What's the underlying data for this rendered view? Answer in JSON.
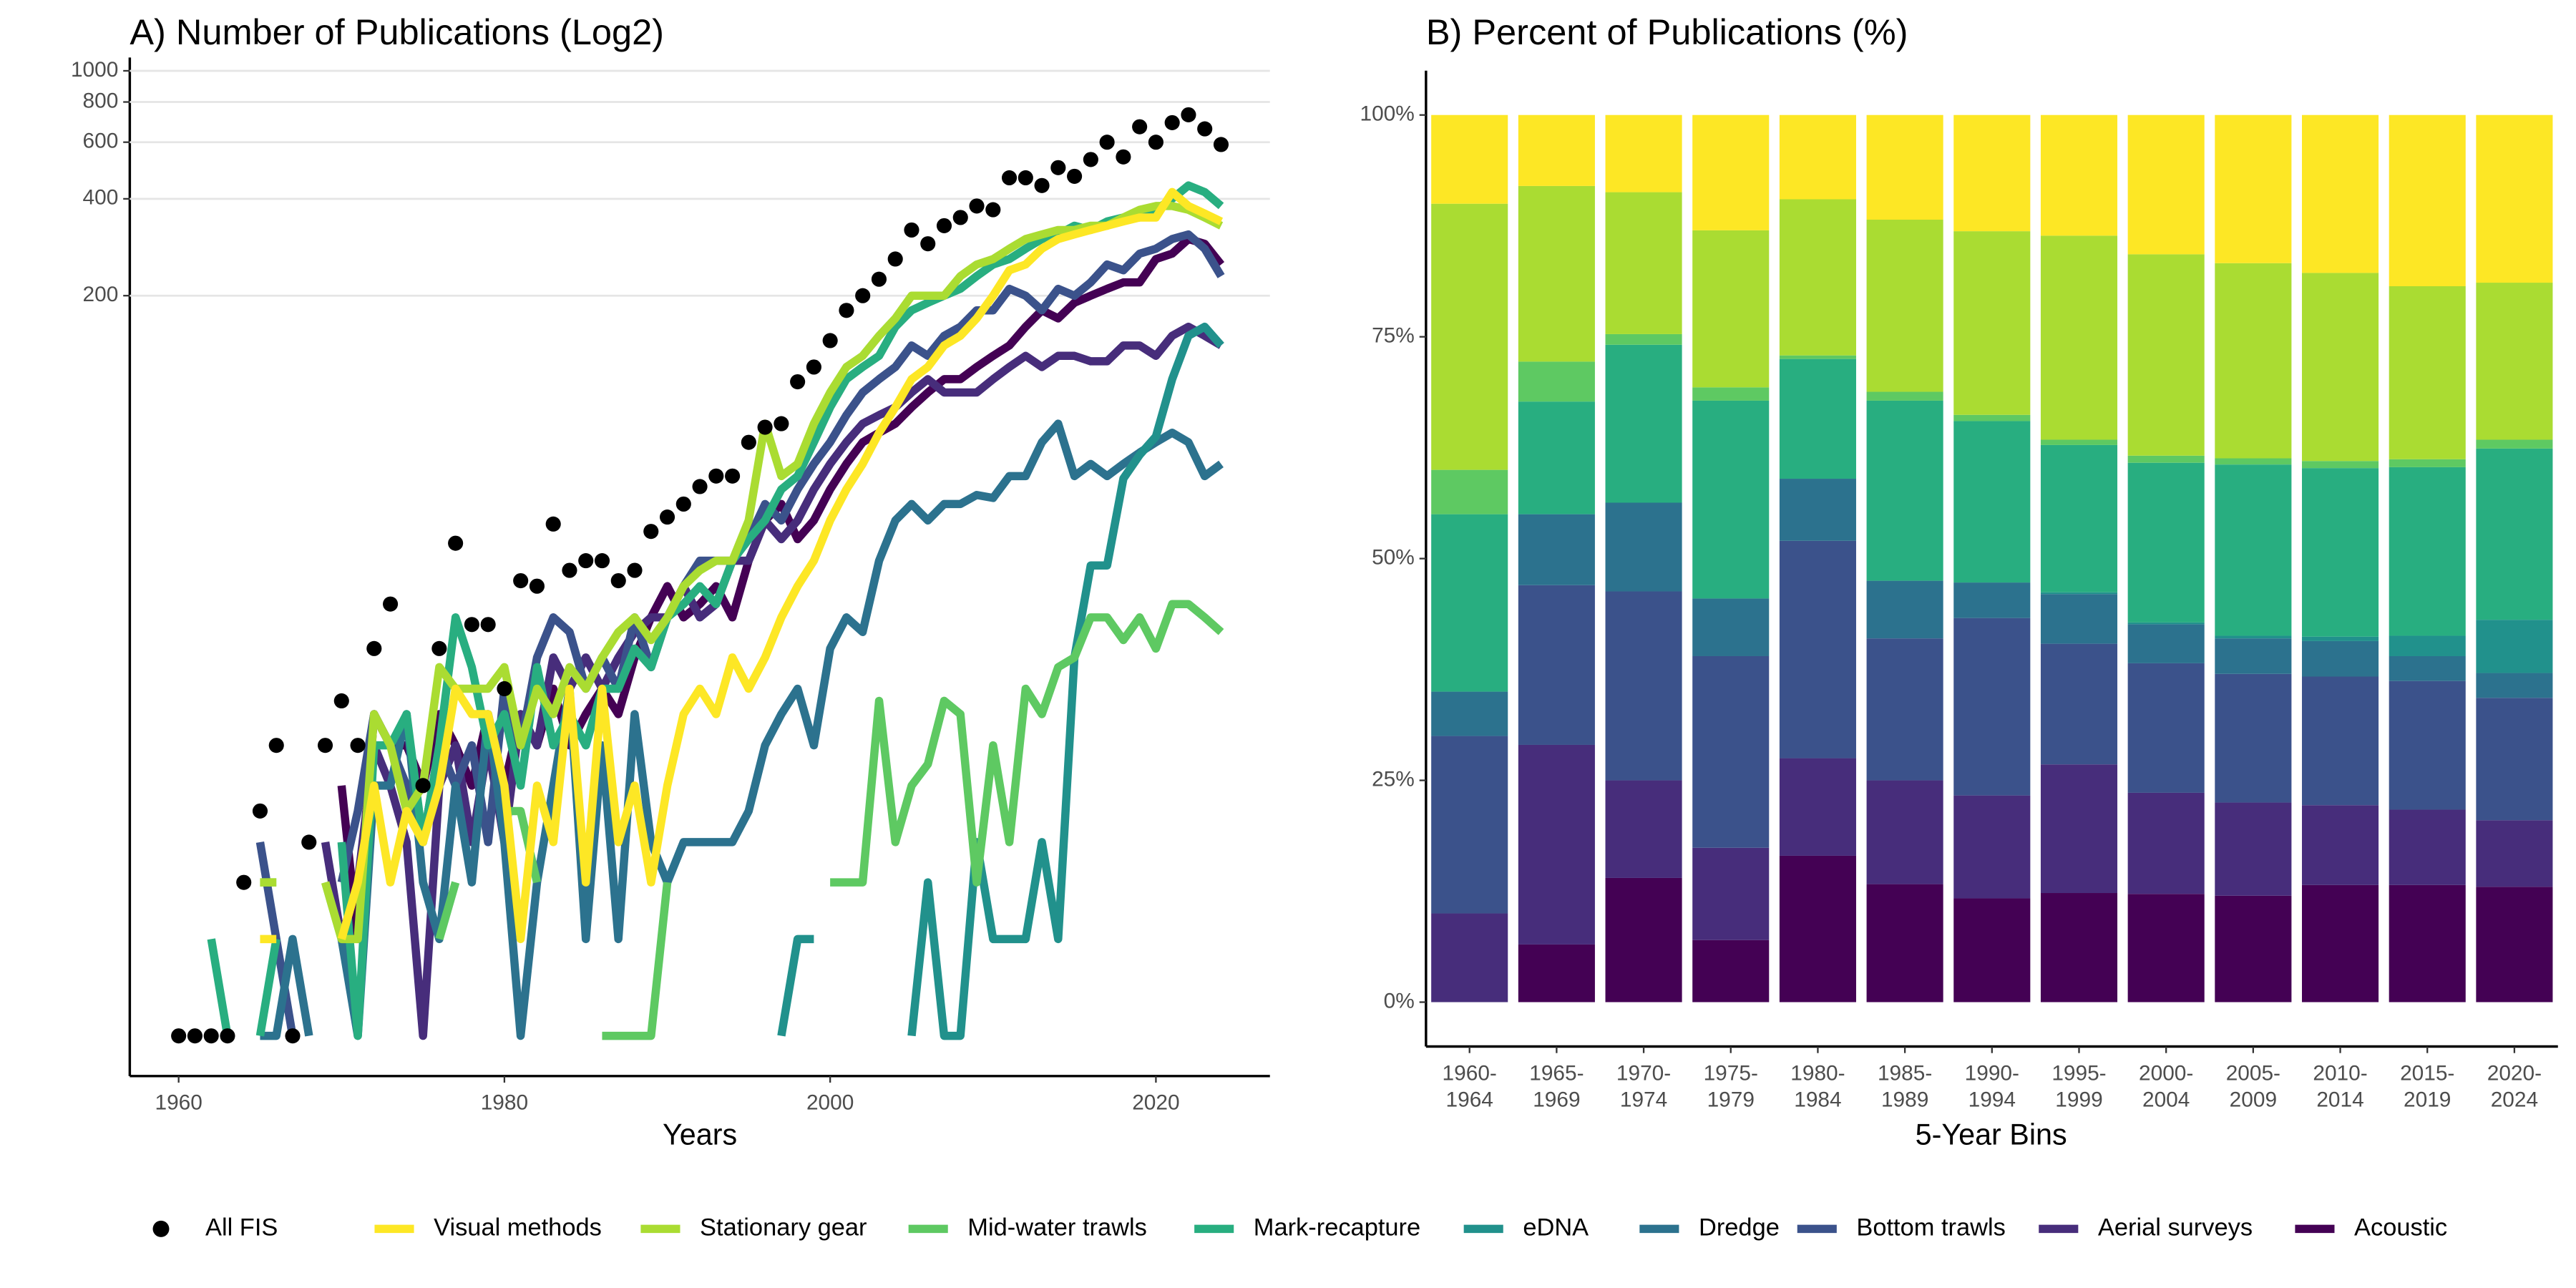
{
  "chart_data": [
    {
      "type": "line",
      "title": "A) Number of Publications (Log2)",
      "x_label": "Years",
      "x": [
        1960,
        1961,
        1962,
        1963,
        1964,
        1965,
        1966,
        1967,
        1968,
        1969,
        1970,
        1971,
        1972,
        1973,
        1974,
        1975,
        1976,
        1977,
        1978,
        1979,
        1980,
        1981,
        1982,
        1983,
        1984,
        1985,
        1986,
        1987,
        1988,
        1989,
        1990,
        1991,
        1992,
        1993,
        1994,
        1995,
        1996,
        1997,
        1998,
        1999,
        2000,
        2001,
        2002,
        2003,
        2004,
        2005,
        2006,
        2007,
        2008,
        2009,
        2010,
        2011,
        2012,
        2013,
        2014,
        2015,
        2016,
        2017,
        2018,
        2019,
        2020,
        2021,
        2022,
        2023,
        2024
      ],
      "xlim": [
        1957,
        2027
      ],
      "xticks": [
        1960,
        1980,
        2000,
        2020
      ],
      "yscale": "log2",
      "ylim": [
        0.75,
        1100
      ],
      "yticks": [
        200,
        400,
        600,
        800,
        1000
      ],
      "grid": "y",
      "legend": "bottom",
      "series": [
        {
          "name": "All FIS",
          "style": "points",
          "color": "#000000",
          "values": [
            1,
            1,
            1,
            1,
            3,
            5,
            8,
            1,
            4,
            8,
            11,
            8,
            16,
            22,
            null,
            6,
            16,
            34,
            19,
            19,
            12,
            26,
            25,
            39,
            28,
            30,
            30,
            26,
            28,
            37,
            41,
            45,
            51,
            55,
            55,
            70,
            78,
            80,
            108,
            120,
            145,
            180,
            200,
            225,
            260,
            320,
            290,
            330,
            350,
            380,
            370,
            465,
            465,
            440,
            500,
            470,
            530,
            600,
            540,
            670,
            600,
            690,
            730,
            660,
            590
          ]
        },
        {
          "name": "Visual methods",
          "color": "#FDE725",
          "values": [
            null,
            null,
            null,
            null,
            null,
            2,
            2,
            null,
            null,
            null,
            2,
            3,
            6,
            3,
            5,
            4,
            6,
            12,
            10,
            10,
            6,
            2,
            6,
            4,
            12,
            3,
            12,
            4,
            6,
            3,
            6,
            10,
            12,
            10,
            15,
            12,
            15,
            20,
            25,
            30,
            40,
            50,
            60,
            75,
            90,
            110,
            120,
            140,
            150,
            170,
            200,
            240,
            250,
            280,
            300,
            310,
            320,
            330,
            340,
            350,
            350,
            420,
            380,
            360,
            340
          ]
        },
        {
          "name": "Stationary gear",
          "color": "#AADC32",
          "values": [
            null,
            null,
            3,
            null,
            null,
            3,
            3,
            null,
            null,
            3,
            2,
            2,
            10,
            8,
            5,
            6,
            14,
            12,
            12,
            12,
            14,
            8,
            12,
            10,
            14,
            12,
            15,
            18,
            20,
            17,
            20,
            25,
            28,
            30,
            30,
            40,
            80,
            55,
            60,
            80,
            100,
            120,
            130,
            150,
            170,
            200,
            200,
            200,
            230,
            250,
            260,
            280,
            300,
            310,
            320,
            320,
            330,
            330,
            350,
            370,
            380,
            380,
            370,
            350,
            330
          ]
        },
        {
          "name": "Mid-water trawls",
          "color": "#5EC962",
          "values": [
            null,
            null,
            null,
            null,
            null,
            3,
            3,
            null,
            null,
            3,
            2,
            null,
            3,
            null,
            null,
            null,
            2,
            3,
            null,
            null,
            5,
            5,
            3,
            null,
            null,
            null,
            1,
            1,
            1,
            1,
            3,
            null,
            null,
            1,
            null,
            null,
            null,
            null,
            null,
            null,
            3,
            3,
            3,
            11,
            4,
            6,
            7,
            11,
            10,
            3,
            8,
            4,
            12,
            10,
            14,
            15,
            20,
            20,
            17,
            20,
            16,
            22,
            22,
            20,
            18
          ]
        },
        {
          "name": "Mark-recapture",
          "color": "#28AE80",
          "values": [
            null,
            null,
            2,
            1,
            null,
            1,
            2,
            null,
            2,
            null,
            4,
            1,
            8,
            8,
            10,
            4,
            8,
            20,
            14,
            8,
            10,
            6,
            14,
            8,
            10,
            8,
            12,
            12,
            16,
            14,
            20,
            22,
            25,
            22,
            30,
            35,
            40,
            50,
            55,
            70,
            90,
            110,
            120,
            130,
            160,
            180,
            190,
            200,
            210,
            230,
            250,
            260,
            280,
            300,
            310,
            330,
            320,
            340,
            350,
            350,
            370,
            400,
            440,
            420,
            380
          ]
        },
        {
          "name": "eDNA",
          "color": "#21918C",
          "values": [
            null,
            null,
            null,
            null,
            null,
            null,
            null,
            null,
            null,
            null,
            null,
            null,
            null,
            null,
            null,
            null,
            null,
            null,
            null,
            null,
            null,
            null,
            null,
            null,
            null,
            null,
            null,
            null,
            null,
            null,
            null,
            null,
            null,
            null,
            null,
            null,
            null,
            1,
            2,
            2,
            null,
            null,
            null,
            null,
            null,
            1,
            3,
            1,
            1,
            4,
            2,
            2,
            2,
            4,
            2,
            15,
            29,
            29,
            54,
            64,
            73,
            110,
            150,
            160,
            140
          ]
        },
        {
          "name": "Dredge",
          "color": "#2C728E",
          "values": [
            null,
            null,
            null,
            null,
            null,
            1,
            1,
            2,
            1,
            null,
            2,
            1,
            6,
            6,
            10,
            3,
            2,
            6,
            3,
            10,
            4,
            1,
            3,
            6,
            12,
            2,
            8,
            2,
            10,
            4,
            3,
            4,
            4,
            4,
            4,
            5,
            8,
            10,
            12,
            8,
            16,
            20,
            18,
            30,
            40,
            45,
            40,
            45,
            45,
            48,
            47,
            55,
            55,
            70,
            80,
            55,
            60,
            55,
            60,
            65,
            70,
            75,
            70,
            55,
            60
          ]
        },
        {
          "name": "Bottom trawls",
          "color": "#3B528B",
          "values": [
            null,
            null,
            null,
            null,
            null,
            4,
            2,
            1,
            null,
            null,
            3,
            5,
            10,
            8,
            6,
            4,
            8,
            6,
            8,
            4,
            12,
            8,
            15,
            20,
            18,
            12,
            15,
            12,
            20,
            14,
            20,
            25,
            30,
            30,
            30,
            35,
            45,
            40,
            50,
            60,
            70,
            85,
            100,
            110,
            120,
            140,
            130,
            150,
            160,
            180,
            180,
            210,
            200,
            180,
            210,
            200,
            220,
            250,
            240,
            270,
            280,
            300,
            310,
            280,
            230
          ]
        },
        {
          "name": "Aerial surveys",
          "color": "#472D7B",
          "values": [
            null,
            null,
            null,
            null,
            null,
            null,
            null,
            null,
            null,
            4,
            2,
            3,
            8,
            6,
            4,
            1,
            6,
            8,
            4,
            8,
            4,
            10,
            8,
            15,
            12,
            15,
            12,
            15,
            18,
            20,
            20,
            25,
            20,
            22,
            30,
            30,
            40,
            35,
            40,
            50,
            60,
            70,
            80,
            85,
            90,
            100,
            110,
            100,
            100,
            100,
            110,
            120,
            130,
            120,
            130,
            130,
            125,
            125,
            140,
            140,
            130,
            150,
            160,
            150,
            140
          ]
        },
        {
          "name": "Acoustic",
          "color": "#440154",
          "values": [
            null,
            null,
            null,
            null,
            null,
            null,
            null,
            null,
            null,
            null,
            6,
            2,
            10,
            8,
            8,
            6,
            10,
            8,
            6,
            10,
            6,
            10,
            8,
            12,
            8,
            10,
            12,
            10,
            15,
            20,
            25,
            20,
            22,
            25,
            20,
            30,
            40,
            45,
            35,
            40,
            50,
            60,
            70,
            75,
            80,
            90,
            100,
            110,
            110,
            120,
            130,
            140,
            160,
            180,
            170,
            190,
            200,
            210,
            220,
            220,
            260,
            270,
            300,
            290,
            250
          ]
        }
      ]
    },
    {
      "type": "stacked_bar",
      "title": "B) Percent of Publications (%)",
      "x_label": "5-Year Bins",
      "categories": [
        [
          "1960-",
          "1964"
        ],
        [
          "1965-",
          "1969"
        ],
        [
          "1970-",
          "1974"
        ],
        [
          "1975-",
          "1979"
        ],
        [
          "1980-",
          "1984"
        ],
        [
          "1985-",
          "1989"
        ],
        [
          "1990-",
          "1994"
        ],
        [
          "1995-",
          "1999"
        ],
        [
          "2000-",
          "2004"
        ],
        [
          "2005-",
          "2009"
        ],
        [
          "2010-",
          "2014"
        ],
        [
          "2015-",
          "2019"
        ],
        [
          "2020-",
          "2024"
        ]
      ],
      "ylim": [
        -5,
        105
      ],
      "yticks": [
        {
          "value": 0,
          "label": "0%"
        },
        {
          "value": 25,
          "label": "25%"
        },
        {
          "value": 50,
          "label": "50%"
        },
        {
          "value": 75,
          "label": "75%"
        },
        {
          "value": 100,
          "label": "100%"
        }
      ],
      "series": [
        {
          "color": "#FDE725",
          "values": [
            10,
            8,
            8.7,
            13,
            9.5,
            11.8,
            13.1,
            13.6,
            15.7,
            16.7,
            17.8,
            19.3,
            18.9
          ]
        },
        {
          "color": "#AADC32",
          "values": [
            30,
            19.8,
            16,
            17.7,
            17.6,
            19.4,
            20.7,
            23,
            22.7,
            22,
            21.2,
            19.5,
            17.7
          ]
        },
        {
          "color": "#5EC962",
          "values": [
            5,
            4.5,
            1.2,
            1.5,
            0.4,
            1,
            0.7,
            0.6,
            0.8,
            0.7,
            0.8,
            0.9,
            1
          ]
        },
        {
          "color": "#28AE80",
          "values": [
            20,
            12.7,
            17.8,
            22.3,
            13.5,
            20.3,
            18.2,
            16.6,
            18,
            19.3,
            19,
            19,
            19.3
          ]
        },
        {
          "color": "#21918C",
          "values": [
            0,
            0,
            0,
            0,
            0,
            0,
            0,
            0.2,
            0.2,
            0.3,
            0.5,
            2.3,
            6
          ]
        },
        {
          "color": "#2C728E",
          "values": [
            5,
            8,
            10,
            6.5,
            7,
            6.5,
            4,
            5.6,
            4.4,
            4,
            4,
            2.8,
            2.8
          ]
        },
        {
          "color": "#3B528B",
          "values": [
            20,
            18,
            21.3,
            21.6,
            24.5,
            16,
            20,
            13.6,
            14.6,
            14.5,
            14.5,
            14.5,
            13.8
          ]
        },
        {
          "color": "#472D7B",
          "values": [
            10,
            22.5,
            11,
            10.4,
            11,
            11.7,
            11.6,
            14.5,
            11.4,
            10.5,
            9,
            8.5,
            7.5
          ]
        },
        {
          "color": "#440154",
          "values": [
            0,
            6.5,
            14,
            7,
            16.5,
            13.3,
            11.7,
            12.3,
            12.2,
            12,
            13.2,
            13.2,
            13
          ]
        }
      ]
    }
  ]
}
